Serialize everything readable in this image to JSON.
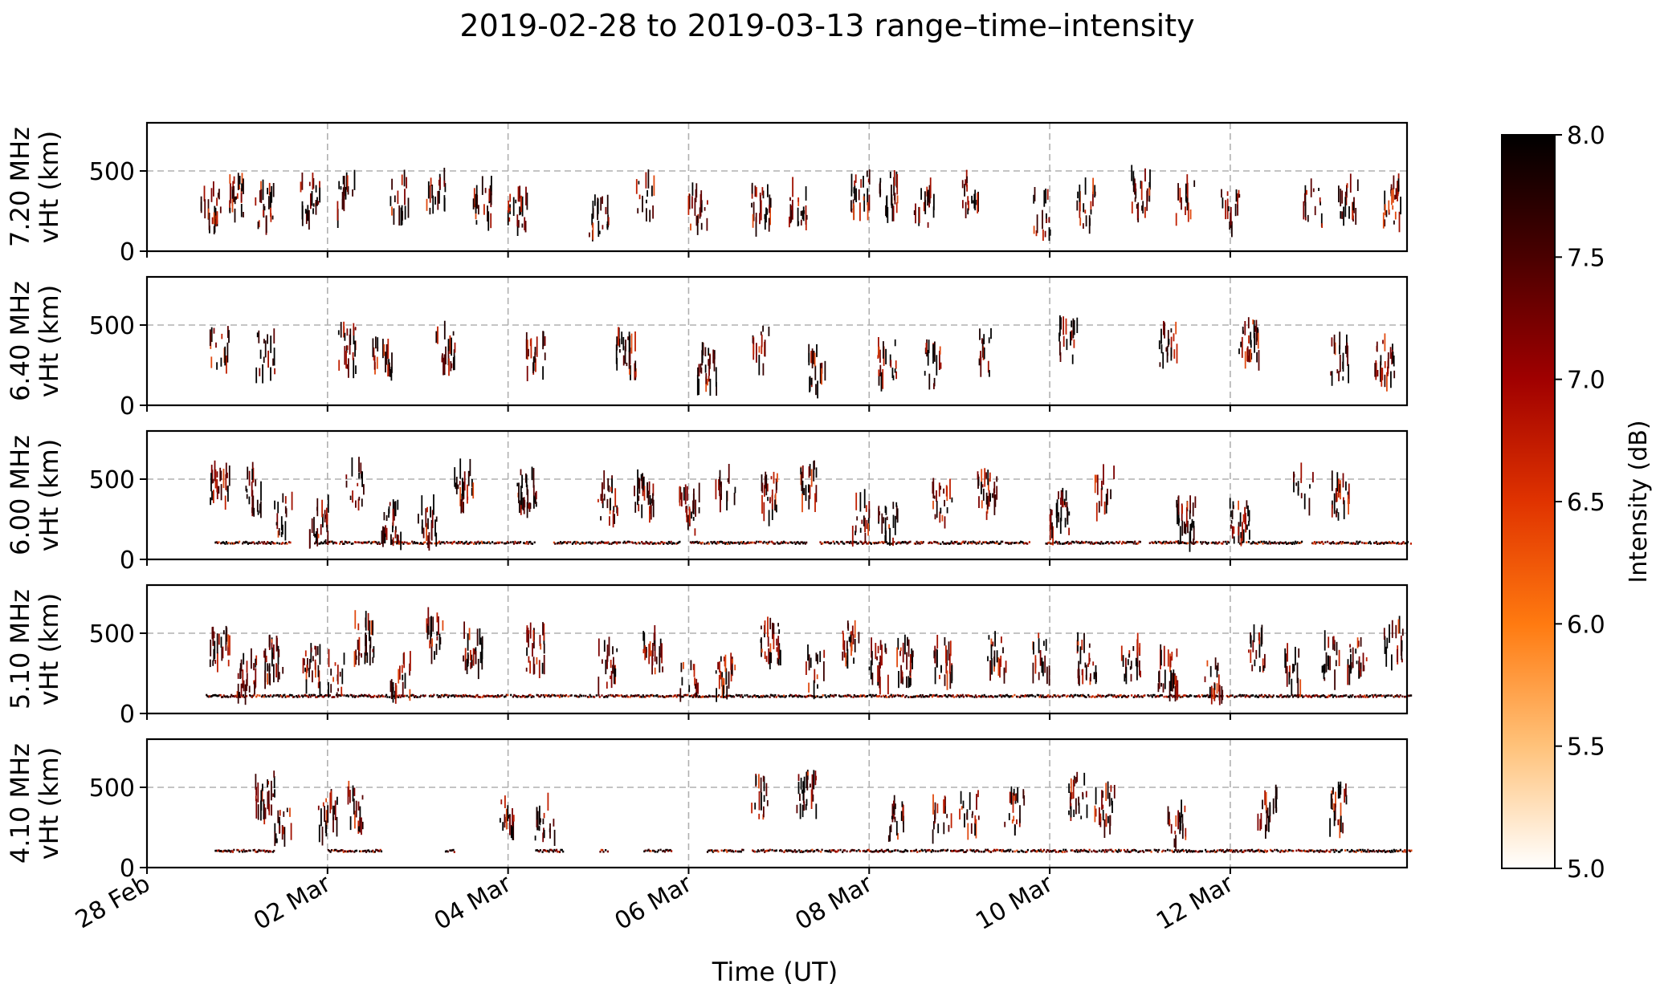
{
  "figure": {
    "title": "2019-02-28 to 2019-03-13  range–time–intensity",
    "xlabel": "Time (UT)",
    "ylabel_unit": "vHt (km)"
  },
  "chart_data": {
    "type": "heatmap",
    "title": "2019-02-28 to 2019-03-13  range–time–intensity",
    "xlabel": "Time (UT)",
    "x_ticks": [
      "28 Feb",
      "02 Mar",
      "04 Mar",
      "06 Mar",
      "08 Mar",
      "10 Mar",
      "12 Mar"
    ],
    "xlim": [
      "2019-02-28 00:00",
      "2019-03-13 23:00"
    ],
    "ylim": [
      0,
      800
    ],
    "y_ticks": [
      0,
      500
    ],
    "grid": true,
    "colorbar": {
      "label": "Intensity (dB)",
      "range": [
        5.0,
        8.0
      ],
      "ticks": [
        "5.0",
        "5.5",
        "6.0",
        "6.5",
        "7.0",
        "7.5",
        "8.0"
      ],
      "colormap": [
        "#ffffff",
        "#ffc27a",
        "#ff7a10",
        "#e03300",
        "#a00000",
        "#4a0000",
        "#000000"
      ]
    },
    "panels": [
      {
        "frequency": "7.20 MHz",
        "ylabel": "vHt (km)",
        "echo_height_km": [
          150,
          420
        ],
        "echo_days": [
          0.7,
          1.0,
          1.3,
          1.8,
          2.2,
          2.8,
          3.2,
          3.7,
          4.1,
          5.0,
          5.5,
          6.1,
          6.8,
          7.2,
          7.9,
          8.2,
          8.6,
          9.1,
          9.9,
          10.4,
          11.0,
          11.5,
          12.0,
          12.9,
          13.3,
          13.8
        ]
      },
      {
        "frequency": "6.40 MHz",
        "ylabel": "vHt (km)",
        "echo_height_km": [
          150,
          470
        ],
        "echo_days": [
          0.8,
          1.3,
          2.2,
          2.6,
          3.3,
          4.3,
          5.3,
          6.2,
          6.8,
          7.4,
          8.2,
          8.7,
          9.3,
          10.2,
          11.3,
          12.2,
          13.2,
          13.7
        ]
      },
      {
        "frequency": "6.00 MHz",
        "ylabel": "vHt (km)",
        "floor_height_km": 110,
        "floor_days": [
          [
            0.75,
            1.6
          ],
          [
            1.85,
            2.6
          ],
          [
            2.7,
            4.3
          ],
          [
            4.5,
            5.9
          ],
          [
            6.0,
            7.3
          ],
          [
            7.45,
            8.6
          ],
          [
            8.65,
            9.8
          ],
          [
            9.95,
            11.0
          ],
          [
            11.1,
            12.0
          ],
          [
            12.1,
            12.8
          ],
          [
            12.9,
            14.0
          ]
        ],
        "echo_days": [
          0.8,
          1.2,
          1.5,
          1.9,
          2.3,
          2.7,
          3.1,
          3.5,
          4.2,
          5.1,
          5.5,
          6.0,
          6.4,
          6.9,
          7.3,
          7.9,
          8.2,
          8.8,
          9.3,
          10.1,
          10.6,
          11.5,
          12.1,
          12.8,
          13.2
        ]
      },
      {
        "frequency": "5.10 MHz",
        "ylabel": "vHt (km)",
        "floor_height_km": 115,
        "floor_days": [
          [
            0.65,
            14.0
          ]
        ],
        "echo_days": [
          0.8,
          1.1,
          1.4,
          1.8,
          2.1,
          2.4,
          2.8,
          3.2,
          3.6,
          4.3,
          5.1,
          5.6,
          6.0,
          6.4,
          6.9,
          7.4,
          7.8,
          8.1,
          8.4,
          8.8,
          9.4,
          9.9,
          10.4,
          10.9,
          11.3,
          11.8,
          12.3,
          12.7,
          13.1,
          13.4,
          13.8
        ]
      },
      {
        "frequency": "4.10 MHz",
        "ylabel": "vHt (km)",
        "floor_height_km": 110,
        "floor_days": [
          [
            0.75,
            1.4
          ],
          [
            2.0,
            2.6
          ],
          [
            3.3,
            3.4
          ],
          [
            4.3,
            4.6
          ],
          [
            5.0,
            5.1
          ],
          [
            5.5,
            5.8
          ],
          [
            6.2,
            6.6
          ],
          [
            6.7,
            14.0
          ]
        ],
        "echo_days": [
          1.3,
          1.5,
          2.0,
          2.3,
          4.0,
          4.4,
          6.8,
          7.3,
          8.3,
          8.8,
          9.1,
          9.6,
          10.3,
          10.6,
          11.4,
          12.4,
          13.2
        ]
      }
    ]
  }
}
